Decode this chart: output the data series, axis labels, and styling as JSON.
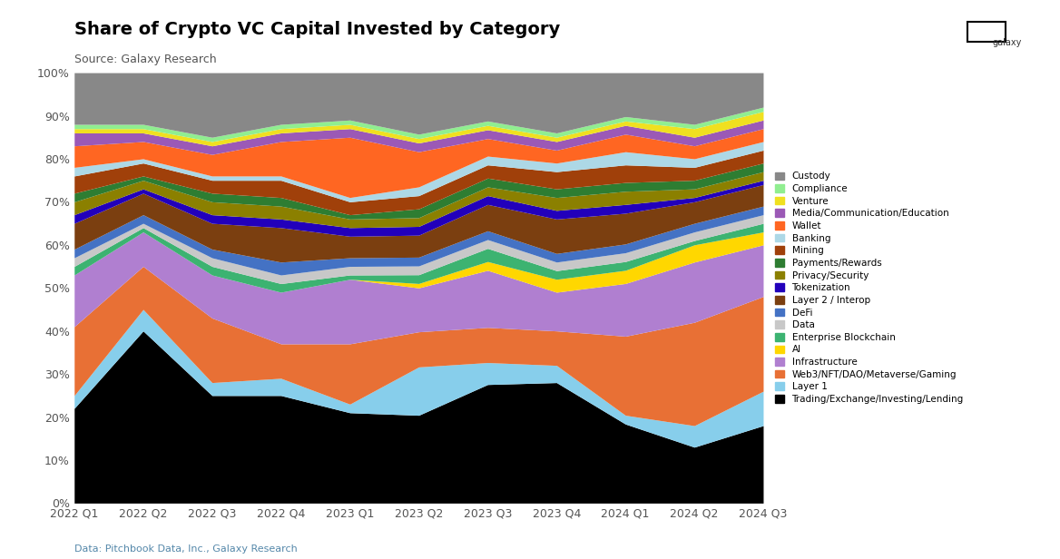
{
  "title": "Share of Crypto VC Capital Invested by Category",
  "subtitle": "Source: Galaxy Research",
  "footnote": "Data: Pitchbook Data, Inc., Galaxy Research",
  "quarters": [
    "2022 Q1",
    "2022 Q2",
    "2022 Q3",
    "2022 Q4",
    "2023 Q1",
    "2023 Q2",
    "2023 Q3",
    "2023 Q4",
    "2024 Q1",
    "2024 Q2",
    "2024 Q3"
  ],
  "categories": [
    "Trading/Exchange/Investing/Lending",
    "Layer 1",
    "Web3/NFT/DAO/Metaverse/Gaming",
    "Infrastructure",
    "AI",
    "Enterprise Blockchain",
    "Data",
    "DeFi",
    "Layer 2 / Interop",
    "Tokenization",
    "Privacy/Security",
    "Payments/Rewards",
    "Mining",
    "Banking",
    "Wallet",
    "Media/Communication/Education",
    "Venture",
    "Compliance",
    "Custody"
  ],
  "colors": [
    "#000000",
    "#87CEEB",
    "#E87035",
    "#B07FD0",
    "#FFD700",
    "#3CB371",
    "#C8C8C8",
    "#4472C4",
    "#7B3F10",
    "#2200BB",
    "#8B8000",
    "#2E7D32",
    "#A0400A",
    "#ADD8E6",
    "#FF6622",
    "#9B59B6",
    "#F0E020",
    "#90EE90",
    "#888888"
  ],
  "data": {
    "Trading/Exchange/Investing/Lending": [
      22,
      40,
      25,
      25,
      21,
      20,
      27,
      28,
      18,
      13,
      18
    ],
    "Layer 1": [
      3,
      5,
      3,
      4,
      2,
      11,
      5,
      4,
      2,
      5,
      8
    ],
    "Web3/NFT/DAO/Metaverse/Gaming": [
      16,
      10,
      15,
      8,
      14,
      8,
      8,
      8,
      18,
      24,
      22
    ],
    "Infrastructure": [
      12,
      8,
      10,
      12,
      15,
      10,
      13,
      9,
      12,
      14,
      12
    ],
    "AI": [
      0,
      0,
      0,
      0,
      0,
      1,
      2,
      3,
      3,
      4,
      3
    ],
    "Enterprise Blockchain": [
      2,
      1,
      2,
      2,
      1,
      2,
      3,
      2,
      2,
      1,
      2
    ],
    "Data": [
      2,
      1,
      2,
      2,
      2,
      2,
      2,
      2,
      2,
      2,
      2
    ],
    "DeFi": [
      2,
      2,
      2,
      3,
      2,
      2,
      2,
      2,
      2,
      2,
      2
    ],
    "Layer 2 / Interop": [
      6,
      5,
      6,
      8,
      5,
      5,
      6,
      8,
      7,
      5,
      5
    ],
    "Tokenization": [
      2,
      1,
      2,
      2,
      2,
      2,
      2,
      2,
      2,
      1,
      1
    ],
    "Privacy/Security": [
      3,
      2,
      3,
      3,
      2,
      2,
      2,
      3,
      3,
      2,
      2
    ],
    "Payments/Rewards": [
      2,
      1,
      2,
      2,
      1,
      2,
      2,
      2,
      2,
      2,
      2
    ],
    "Mining": [
      4,
      3,
      3,
      4,
      3,
      3,
      3,
      4,
      4,
      3,
      3
    ],
    "Banking": [
      2,
      1,
      1,
      1,
      1,
      2,
      2,
      2,
      3,
      2,
      2
    ],
    "Wallet": [
      5,
      4,
      5,
      8,
      14,
      8,
      4,
      3,
      4,
      3,
      3
    ],
    "Media/Communication/Education": [
      3,
      2,
      2,
      2,
      2,
      2,
      2,
      2,
      2,
      2,
      2
    ],
    "Venture": [
      1,
      1,
      1,
      1,
      1,
      1,
      1,
      1,
      1,
      2,
      2
    ],
    "Compliance": [
      1,
      1,
      1,
      1,
      1,
      1,
      1,
      1,
      1,
      1,
      1
    ],
    "Custody": [
      12,
      12,
      15,
      12,
      11,
      14,
      11,
      14,
      10,
      12,
      8
    ]
  }
}
